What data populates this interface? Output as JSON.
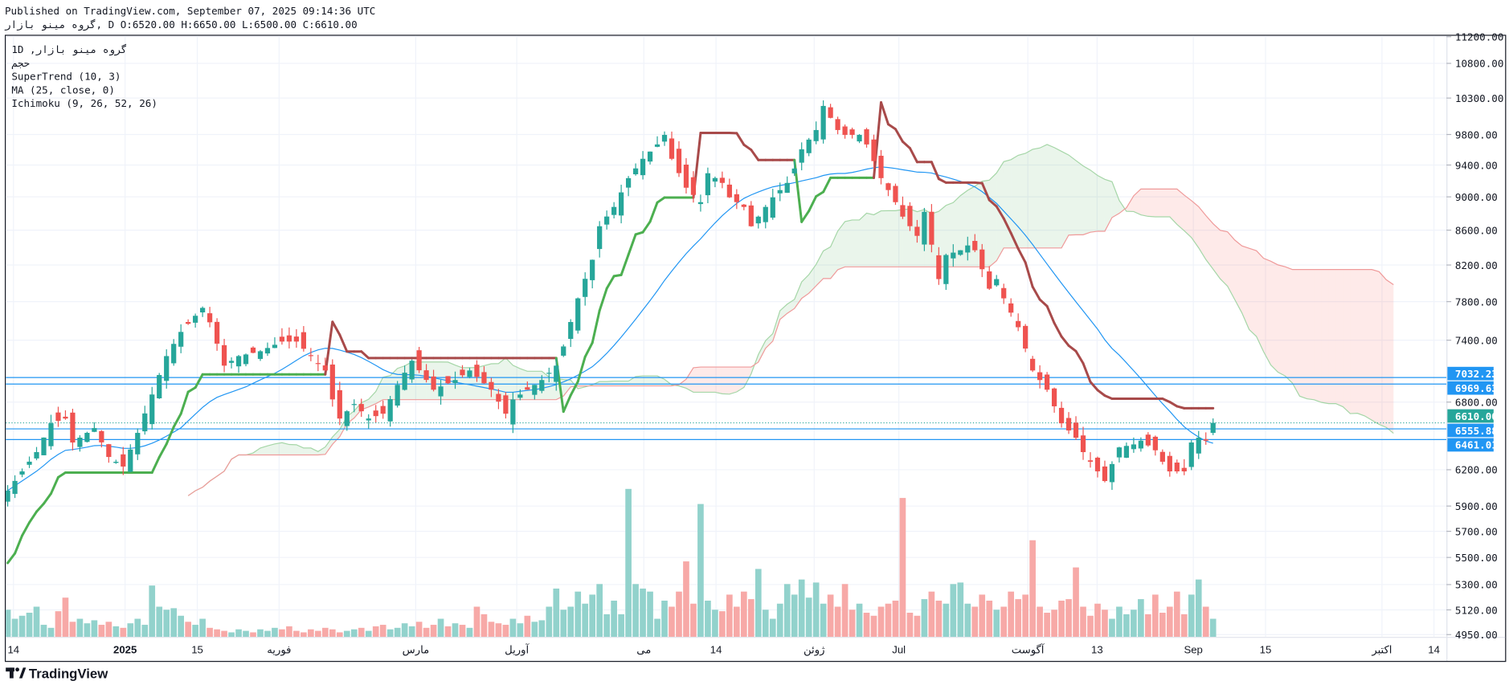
{
  "header": {
    "line1": "Published on TradingView.com, September 07, 2025 09:14:36 UTC",
    "line2": "گروه مینو بازار, D O:6520.00 H:6650.00 L:6500.00 C:6610.00"
  },
  "legend": {
    "symbol": "1D ,گروه مینو بازار",
    "volume_label": "حجم",
    "supertrend": "SuperTrend (10, 3)",
    "ma": "MA (25, close, 0)",
    "ichimoku": "Ichimoku (9, 26, 52, 26)"
  },
  "branding": {
    "logo_text": "TradingView"
  },
  "colors": {
    "up": "#26a69a",
    "down": "#ef5350",
    "vol_up": "#92d2cc",
    "vol_down": "#f7a9a7",
    "ma": "#2196f3",
    "st_up": "#4caf50",
    "st_down": "#a84a4a",
    "span_a": "#a5d6a7",
    "span_b": "#ef9a9a",
    "hline": "#2196f3",
    "last_price": "#26a69a"
  },
  "chart_data": {
    "type": "candlestick",
    "title": "گروه مینو بازار, 1D",
    "scale": "log",
    "ylim": [
      4950,
      11200
    ],
    "y_ticks": [
      11200,
      10800,
      10300,
      9800,
      9400,
      9000,
      8600,
      8200,
      7800,
      7400,
      6800,
      6200,
      5900,
      5700,
      5500,
      5300,
      5120,
      4950
    ],
    "x_ticks": [
      "14",
      "2025",
      "15",
      "فوریه",
      "مارس",
      "آوریل",
      "می",
      "14",
      "ژوئن",
      "Jul",
      "آگوست",
      "13",
      "Sep",
      "15",
      "اکتبر",
      "14"
    ],
    "bars": 168,
    "close_keypoints": [
      [
        0,
        6026
      ],
      [
        2,
        6186
      ],
      [
        4,
        6351
      ],
      [
        6,
        6606
      ],
      [
        8,
        6649
      ],
      [
        9,
        6435
      ],
      [
        12,
        6563
      ],
      [
        14,
        6309
      ],
      [
        16,
        6227
      ],
      [
        18,
        6520
      ],
      [
        20,
        6871
      ],
      [
        22,
        7241
      ],
      [
        24,
        7484
      ],
      [
        27,
        7734
      ],
      [
        28,
        7583
      ],
      [
        30,
        7147
      ],
      [
        32,
        7241
      ],
      [
        35,
        7289
      ],
      [
        38,
        7386
      ],
      [
        40,
        7386
      ],
      [
        42,
        7241
      ],
      [
        44,
        7100
      ],
      [
        45,
        6825
      ],
      [
        46,
        6649
      ],
      [
        48,
        6782
      ],
      [
        50,
        6649
      ],
      [
        52,
        6693
      ],
      [
        54,
        6962
      ],
      [
        56,
        7195
      ],
      [
        59,
        6916
      ],
      [
        62,
        7008
      ],
      [
        64,
        7100
      ],
      [
        67,
        6916
      ],
      [
        69,
        6693
      ],
      [
        70,
        6825
      ],
      [
        72,
        6916
      ],
      [
        74,
        7008
      ],
      [
        76,
        7147
      ],
      [
        77,
        7337
      ],
      [
        79,
        7835
      ],
      [
        81,
        8259
      ],
      [
        82,
        8646
      ],
      [
        84,
        8877
      ],
      [
        86,
        9233
      ],
      [
        88,
        9480
      ],
      [
        90,
        9668
      ],
      [
        91,
        9795
      ],
      [
        92,
        9480
      ],
      [
        94,
        9113
      ],
      [
        96,
        8935
      ],
      [
        97,
        9295
      ],
      [
        99,
        9173
      ],
      [
        100,
        8994
      ],
      [
        102,
        8877
      ],
      [
        103,
        8646
      ],
      [
        104,
        8760
      ],
      [
        106,
        8994
      ],
      [
        108,
        9173
      ],
      [
        109,
        9355
      ],
      [
        110,
        9604
      ],
      [
        112,
        9860
      ],
      [
        113,
        10190
      ],
      [
        115,
        9860
      ],
      [
        116,
        9795
      ],
      [
        118,
        9795
      ],
      [
        119,
        9668
      ],
      [
        121,
        9233
      ],
      [
        123,
        8935
      ],
      [
        124,
        8760
      ],
      [
        126,
        8533
      ],
      [
        127,
        8818
      ],
      [
        129,
        8044
      ],
      [
        130,
        8313
      ],
      [
        132,
        8367
      ],
      [
        133,
        8422
      ],
      [
        134,
        8367
      ],
      [
        136,
        7939
      ],
      [
        137,
        8044
      ],
      [
        138,
        7835
      ],
      [
        140,
        7532
      ],
      [
        142,
        7100
      ],
      [
        144,
        6916
      ],
      [
        146,
        6606
      ],
      [
        148,
        6477
      ],
      [
        149,
        6351
      ],
      [
        150,
        6268
      ],
      [
        152,
        6105
      ],
      [
        154,
        6392
      ],
      [
        156,
        6418
      ],
      [
        157,
        6451
      ],
      [
        159,
        6367
      ],
      [
        160,
        6268
      ],
      [
        161,
        6186
      ],
      [
        163,
        6186
      ],
      [
        164,
        6435
      ],
      [
        165,
        6477
      ],
      [
        166,
        6451
      ],
      [
        167,
        6610
      ]
    ],
    "last_bar": {
      "open": 6520,
      "high": 6650,
      "low": 6500,
      "close": 6610
    },
    "volume_relative": [
      18,
      12,
      14,
      16,
      20,
      8,
      6,
      17,
      26,
      10,
      12,
      9,
      11,
      8,
      10,
      7,
      6,
      9,
      12,
      8,
      34,
      20,
      18,
      19,
      14,
      10,
      8,
      12,
      6,
      5,
      4,
      3,
      5,
      4,
      3,
      5,
      4,
      6,
      5,
      7,
      4,
      3,
      5,
      4,
      6,
      5,
      3,
      4,
      5,
      6,
      4,
      7,
      8,
      5,
      6,
      9,
      7,
      10,
      6,
      8,
      12,
      7,
      9,
      8,
      6,
      20,
      15,
      10,
      9,
      8,
      12,
      9,
      14,
      10,
      11,
      20,
      32,
      18,
      20,
      30,
      22,
      28,
      35,
      15,
      24,
      15,
      98,
      35,
      32,
      30,
      12,
      24,
      20,
      30,
      50,
      22,
      88,
      24,
      18,
      17,
      28,
      20,
      30,
      25,
      45,
      18,
      12,
      22,
      35,
      28,
      38,
      26,
      36,
      22,
      28,
      20,
      35,
      18,
      22,
      16,
      14,
      20,
      22,
      24,
      92,
      16,
      14,
      25,
      30,
      24,
      22,
      35,
      36,
      22,
      20,
      28,
      24,
      18,
      20,
      30,
      25,
      28,
      64,
      20,
      16,
      18,
      24,
      25,
      46,
      20,
      14,
      22,
      18,
      12,
      20,
      15,
      18,
      25,
      15,
      28,
      16,
      20,
      30,
      15,
      28,
      38,
      20,
      12
    ],
    "indicators": {
      "supertrend": {
        "period": 10,
        "factor": 3
      },
      "ma": {
        "length": 25,
        "source": "close"
      },
      "ichimoku": {
        "conversion": 9,
        "base": 26,
        "span_b": 52,
        "displacement": 26
      }
    },
    "horizontal_lines": [
      {
        "label": "7032.23",
        "value": 7032.23
      },
      {
        "label": "6969.63",
        "value": 6969.63
      },
      {
        "label": "6555.88",
        "value": 6555.88
      },
      {
        "label": "6461.01",
        "value": 6461.01
      }
    ],
    "last_price": {
      "label": "6610.00",
      "value": 6610
    }
  }
}
